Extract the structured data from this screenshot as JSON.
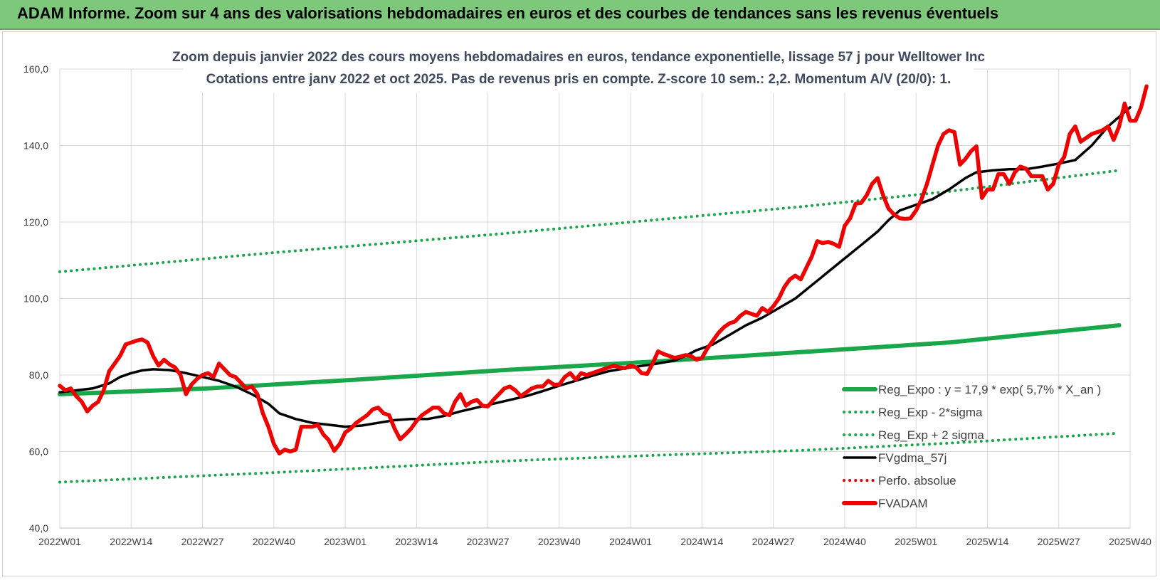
{
  "banner": {
    "title": "ADAM Informe. Zoom sur 4 ans des valorisations hebdomadaires en euros et des courbes de tendances sans les revenus éventuels"
  },
  "chart_data": {
    "type": "line",
    "title": "Zoom depuis janvier 2022 des cours moyens hebdomadaires en euros, tendance exponentielle, lissage 57 j pour Welltower Inc",
    "subtitle": "Cotations entre janv 2022 et oct 2025. Pas de revenus pris en compte. Z-score 10 sem.: 2,2. Momentum A/V (20/0): 1.",
    "ylim": [
      40,
      160
    ],
    "y_ticks": [
      "40,0",
      "60,0",
      "80,0",
      "100,0",
      "120,0",
      "140,0",
      "160,0"
    ],
    "x_ticks": [
      "2022W01",
      "2022W14",
      "2022W27",
      "2022W40",
      "2023W01",
      "2023W14",
      "2023W27",
      "2023W40",
      "2024W01",
      "2024W14",
      "2024W27",
      "2024W40",
      "2025W01",
      "2025W14",
      "2025W27",
      "2025W40"
    ],
    "grid": true,
    "legend_placement": "bottom-right",
    "legend": [
      {
        "label": "Reg_Expo : y = 17,9 * exp( 5,7% * X_an )",
        "color": "#1aa64a",
        "style": "thick"
      },
      {
        "label": "Reg_Exp - 2*sigma",
        "color": "#1aa64a",
        "style": "dotted"
      },
      {
        "label": "Reg_Exp + 2 sigma",
        "color": "#1aa64a",
        "style": "dotted"
      },
      {
        "label": "FVgdma_57j",
        "color": "#000000",
        "style": "solid"
      },
      {
        "label": "Perfo. absolue",
        "color": "#e00000",
        "style": "dotted"
      },
      {
        "label": "FVADAM",
        "color": "#ee0000",
        "style": "thick"
      }
    ],
    "series": [
      {
        "name": "Reg_Expo : y = 17,9 * exp( 5,7% * X_an )",
        "color": "#1aa64a",
        "points": [
          [
            0,
            75
          ],
          [
            27,
            76.5
          ],
          [
            54,
            78.8
          ],
          [
            81,
            81.3
          ],
          [
            108,
            83.5
          ],
          [
            135,
            86.0
          ],
          [
            162,
            88.5
          ],
          [
            193,
            93.0
          ]
        ]
      },
      {
        "name": "Reg_Exp - 2*sigma",
        "color": "#1aa64a",
        "points": [
          [
            0,
            52
          ],
          [
            39,
            54.5
          ],
          [
            81,
            57.5
          ],
          [
            108,
            59.0
          ],
          [
            135,
            60.3
          ],
          [
            162,
            62.2
          ],
          [
            193,
            64.8
          ]
        ]
      },
      {
        "name": "Reg_Exp + 2 sigma",
        "color": "#1aa64a",
        "points": [
          [
            0,
            107
          ],
          [
            39,
            112.0
          ],
          [
            81,
            117.0
          ],
          [
            108,
            120.5
          ],
          [
            135,
            124.0
          ],
          [
            162,
            128.0
          ],
          [
            193,
            133.5
          ]
        ]
      },
      {
        "name": "FVgdma_57j",
        "color": "#000000",
        "points": [
          [
            0,
            75.5
          ],
          [
            3,
            76
          ],
          [
            6,
            76.5
          ],
          [
            9,
            77.8
          ],
          [
            11,
            79.5
          ],
          [
            13,
            80.5
          ],
          [
            15,
            81.2
          ],
          [
            17,
            81.5
          ],
          [
            20,
            81.3
          ],
          [
            23,
            80.5
          ],
          [
            26,
            79.5
          ],
          [
            29,
            78.5
          ],
          [
            32,
            77
          ],
          [
            35,
            75
          ],
          [
            38,
            72.5
          ],
          [
            40,
            70
          ],
          [
            43,
            68.5
          ],
          [
            46,
            67.5
          ],
          [
            49,
            67
          ],
          [
            52,
            66.5
          ],
          [
            55,
            66.8
          ],
          [
            58,
            67.5
          ],
          [
            61,
            68.2
          ],
          [
            64,
            68.5
          ],
          [
            67,
            68.5
          ],
          [
            70,
            69.3
          ],
          [
            73,
            70.5
          ],
          [
            76,
            71.5
          ],
          [
            79,
            72.5
          ],
          [
            82,
            73.5
          ],
          [
            85,
            74.5
          ],
          [
            88,
            75.8
          ],
          [
            91,
            77.2
          ],
          [
            94,
            78.5
          ],
          [
            97,
            79.8
          ],
          [
            100,
            81
          ],
          [
            104,
            82
          ],
          [
            108,
            82.8
          ],
          [
            112,
            83.8
          ],
          [
            114,
            85
          ],
          [
            116,
            86.5
          ],
          [
            119,
            88
          ],
          [
            122,
            90.5
          ],
          [
            125,
            93
          ],
          [
            128,
            95
          ],
          [
            131,
            97.5
          ],
          [
            134,
            100
          ],
          [
            137,
            103.5
          ],
          [
            140,
            107
          ],
          [
            143,
            110.5
          ],
          [
            146,
            114
          ],
          [
            149,
            117.5
          ],
          [
            151,
            120.5
          ],
          [
            153,
            123
          ],
          [
            156,
            124.5
          ],
          [
            159,
            126
          ],
          [
            162,
            128.5
          ],
          [
            165,
            131.5
          ],
          [
            167,
            133
          ],
          [
            170,
            133.5
          ],
          [
            173,
            133.8
          ],
          [
            176,
            133.8
          ],
          [
            179,
            134.5
          ],
          [
            182,
            135.3
          ],
          [
            185,
            136.2
          ],
          [
            188,
            140
          ],
          [
            191,
            145
          ],
          [
            193,
            147.5
          ],
          [
            195,
            150
          ]
        ]
      },
      {
        "name": "FVADAM",
        "color": "#ee0000",
        "points": [
          [
            0,
            77.2
          ],
          [
            1,
            76
          ],
          [
            2,
            76.5
          ],
          [
            3,
            74.5
          ],
          [
            4,
            73
          ],
          [
            5,
            70.5
          ],
          [
            6,
            72
          ],
          [
            7,
            73
          ],
          [
            8,
            76
          ],
          [
            9,
            81
          ],
          [
            10,
            83
          ],
          [
            11,
            85
          ],
          [
            12,
            88
          ],
          [
            13,
            88.5
          ],
          [
            14,
            89
          ],
          [
            15,
            89.3
          ],
          [
            16,
            88.5
          ],
          [
            17,
            85
          ],
          [
            18,
            82.5
          ],
          [
            19,
            84
          ],
          [
            20,
            82.8
          ],
          [
            21,
            82
          ],
          [
            22,
            80
          ],
          [
            23,
            75
          ],
          [
            24,
            77.5
          ],
          [
            25,
            79
          ],
          [
            26,
            80
          ],
          [
            27,
            80.5
          ],
          [
            28,
            79.5
          ],
          [
            29,
            83
          ],
          [
            30,
            81.5
          ],
          [
            31,
            80
          ],
          [
            32,
            79.5
          ],
          [
            33,
            78
          ],
          [
            34,
            76.5
          ],
          [
            35,
            77
          ],
          [
            36,
            75
          ],
          [
            37,
            70
          ],
          [
            38,
            66.5
          ],
          [
            39,
            62
          ],
          [
            40,
            59.5
          ],
          [
            41,
            60.5
          ],
          [
            42,
            60
          ],
          [
            43,
            60.5
          ],
          [
            44,
            66.5
          ],
          [
            45,
            66.5
          ],
          [
            46,
            66.5
          ],
          [
            47,
            67
          ],
          [
            48,
            64.5
          ],
          [
            49,
            63
          ],
          [
            50,
            60.2
          ],
          [
            51,
            62
          ],
          [
            52,
            65
          ],
          [
            53,
            66
          ],
          [
            54,
            67.5
          ],
          [
            55,
            68.5
          ],
          [
            56,
            69.5
          ],
          [
            57,
            71
          ],
          [
            58,
            71.5
          ],
          [
            59,
            70
          ],
          [
            60,
            69.5
          ],
          [
            61,
            66
          ],
          [
            62,
            63.2
          ],
          [
            63,
            64.5
          ],
          [
            64,
            66
          ],
          [
            65,
            68
          ],
          [
            66,
            69.5
          ],
          [
            67,
            70.5
          ],
          [
            68,
            71.5
          ],
          [
            69,
            71.5
          ],
          [
            70,
            70
          ],
          [
            71,
            69.5
          ],
          [
            72,
            73
          ],
          [
            73,
            75
          ],
          [
            74,
            72
          ],
          [
            75,
            73
          ],
          [
            76,
            73.5
          ],
          [
            77,
            72
          ],
          [
            78,
            71.8
          ],
          [
            79,
            73.5
          ],
          [
            80,
            75
          ],
          [
            81,
            76.5
          ],
          [
            82,
            77
          ],
          [
            83,
            76
          ],
          [
            84,
            74.5
          ],
          [
            85,
            75.5
          ],
          [
            86,
            76.5
          ],
          [
            87,
            77
          ],
          [
            88,
            77
          ],
          [
            89,
            78.5
          ],
          [
            90,
            77.5
          ],
          [
            91,
            77.5
          ],
          [
            92,
            79.5
          ],
          [
            93,
            80.5
          ],
          [
            94,
            78.8
          ],
          [
            95,
            80.5
          ],
          [
            96,
            80
          ],
          [
            97,
            80.5
          ],
          [
            98,
            81
          ],
          [
            99,
            81.5
          ],
          [
            100,
            82
          ],
          [
            101,
            82.5
          ],
          [
            102,
            82
          ],
          [
            103,
            81.8
          ],
          [
            104,
            82.5
          ],
          [
            105,
            82
          ],
          [
            106,
            80.5
          ],
          [
            107,
            80.3
          ],
          [
            108,
            83
          ],
          [
            109,
            86.2
          ],
          [
            110,
            85.5
          ],
          [
            111,
            85
          ],
          [
            112,
            84.5
          ],
          [
            113,
            84.8
          ],
          [
            114,
            85.2
          ],
          [
            115,
            85
          ],
          [
            116,
            84
          ],
          [
            117,
            84.5
          ],
          [
            118,
            87
          ],
          [
            119,
            89
          ],
          [
            120,
            91
          ],
          [
            121,
            92.5
          ],
          [
            122,
            93.5
          ],
          [
            123,
            94
          ],
          [
            124,
            95.5
          ],
          [
            125,
            96.5
          ],
          [
            126,
            96
          ],
          [
            127,
            95.5
          ],
          [
            128,
            97.5
          ],
          [
            129,
            96.5
          ],
          [
            130,
            98
          ],
          [
            131,
            100
          ],
          [
            132,
            103
          ],
          [
            133,
            105
          ],
          [
            134,
            106
          ],
          [
            135,
            105
          ],
          [
            136,
            108
          ],
          [
            137,
            111
          ],
          [
            138,
            115
          ],
          [
            139,
            114.5
          ],
          [
            140,
            114.8
          ],
          [
            141,
            114.3
          ],
          [
            142,
            113.5
          ],
          [
            143,
            119
          ],
          [
            144,
            121
          ],
          [
            145,
            124.8
          ],
          [
            146,
            125
          ],
          [
            147,
            127
          ],
          [
            148,
            130
          ],
          [
            149,
            131.5
          ],
          [
            150,
            127
          ],
          [
            151,
            123.5
          ],
          [
            152,
            122
          ],
          [
            153,
            121
          ],
          [
            154,
            120.8
          ],
          [
            155,
            121
          ],
          [
            156,
            123
          ],
          [
            157,
            126
          ],
          [
            158,
            130
          ],
          [
            159,
            135
          ],
          [
            160,
            140
          ],
          [
            161,
            143
          ],
          [
            162,
            144
          ],
          [
            163,
            143.5
          ],
          [
            164,
            135
          ],
          [
            165,
            136.5
          ],
          [
            166,
            138.5
          ],
          [
            167,
            139.8
          ],
          [
            168,
            126.3
          ],
          [
            169,
            128.5
          ],
          [
            170,
            128.5
          ],
          [
            171,
            132.5
          ],
          [
            172,
            132.5
          ],
          [
            173,
            130
          ],
          [
            174,
            133
          ],
          [
            175,
            134.5
          ],
          [
            176,
            134
          ],
          [
            177,
            132
          ],
          [
            178,
            132
          ],
          [
            179,
            132
          ],
          [
            180,
            128.5
          ],
          [
            181,
            130
          ],
          [
            182,
            135
          ],
          [
            183,
            137
          ],
          [
            184,
            143
          ],
          [
            185,
            145
          ],
          [
            186,
            141
          ],
          [
            187,
            142
          ],
          [
            188,
            143
          ],
          [
            189,
            143.5
          ],
          [
            190,
            144
          ],
          [
            191,
            145
          ],
          [
            192,
            141.5
          ],
          [
            193,
            145
          ],
          [
            194,
            151
          ],
          [
            195,
            146.5
          ],
          [
            196,
            146.5
          ],
          [
            197,
            150
          ],
          [
            198,
            155.5
          ]
        ]
      }
    ]
  }
}
